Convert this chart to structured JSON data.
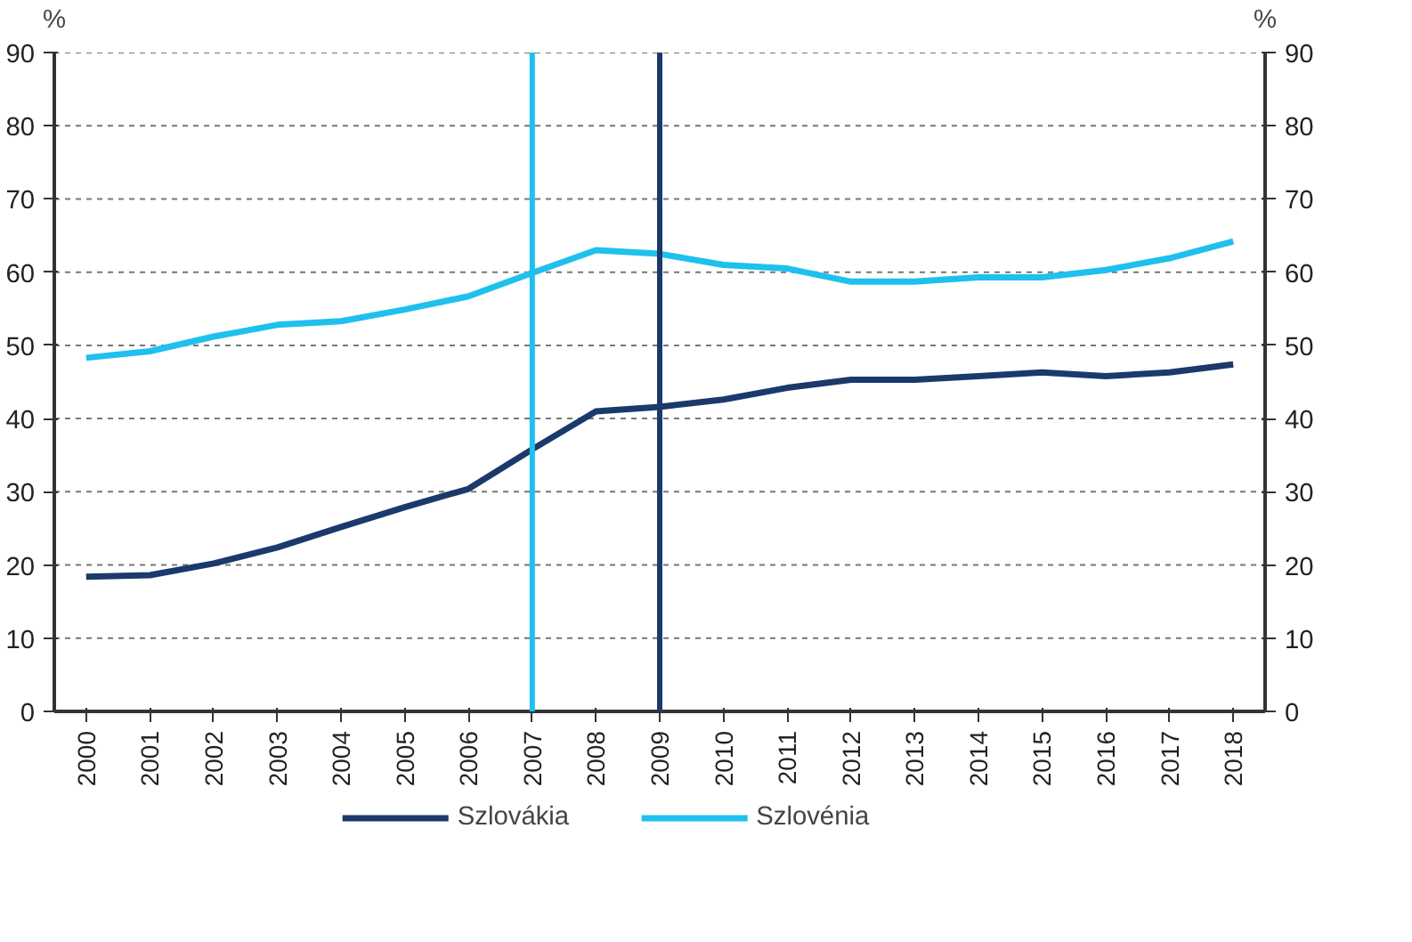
{
  "chart_data": {
    "type": "line",
    "x": [
      2000,
      2001,
      2002,
      2003,
      2004,
      2005,
      2006,
      2007,
      2008,
      2009,
      2010,
      2011,
      2012,
      2013,
      2014,
      2015,
      2016,
      2017,
      2018
    ],
    "series": [
      {
        "name": "Szlovákia",
        "color": "#1b3a6b",
        "values": [
          18.4,
          18.6,
          20.2,
          22.4,
          25.2,
          27.9,
          30.4,
          35.8,
          41.0,
          41.6,
          42.6,
          44.2,
          45.3,
          45.3,
          45.8,
          46.3,
          45.8,
          46.3,
          47.4
        ]
      },
      {
        "name": "Szlovénia",
        "color": "#1fc0ee",
        "values": [
          48.3,
          49.2,
          51.2,
          52.8,
          53.3,
          54.9,
          56.7,
          59.9,
          63.0,
          62.5,
          61.0,
          60.5,
          58.7,
          58.7,
          59.3,
          59.3,
          60.3,
          61.9,
          64.2
        ]
      }
    ],
    "xlim": [
      1999.5,
      2018.5
    ],
    "xticks": [
      2000,
      2001,
      2002,
      2003,
      2004,
      2005,
      2006,
      2007,
      2008,
      2009,
      2010,
      2011,
      2012,
      2013,
      2014,
      2015,
      2016,
      2017,
      2018
    ],
    "ylim": [
      0,
      90
    ],
    "yticks": [
      0,
      10,
      20,
      30,
      40,
      50,
      60,
      70,
      80,
      90
    ],
    "y2lim": [
      0,
      90
    ],
    "y2ticks": [
      0,
      10,
      20,
      30,
      40,
      50,
      60,
      70,
      80,
      90
    ],
    "ylabel": "%",
    "y2label": "%",
    "ref_lines": [
      {
        "axis": "x",
        "value": 2007,
        "label": null,
        "color": "#1fc0ee"
      },
      {
        "axis": "x",
        "value": 2009,
        "label": null,
        "color": "#1b3a6b"
      }
    ],
    "grid": "y",
    "legend": "bottom",
    "marker": "none",
    "line_style": "solid"
  }
}
